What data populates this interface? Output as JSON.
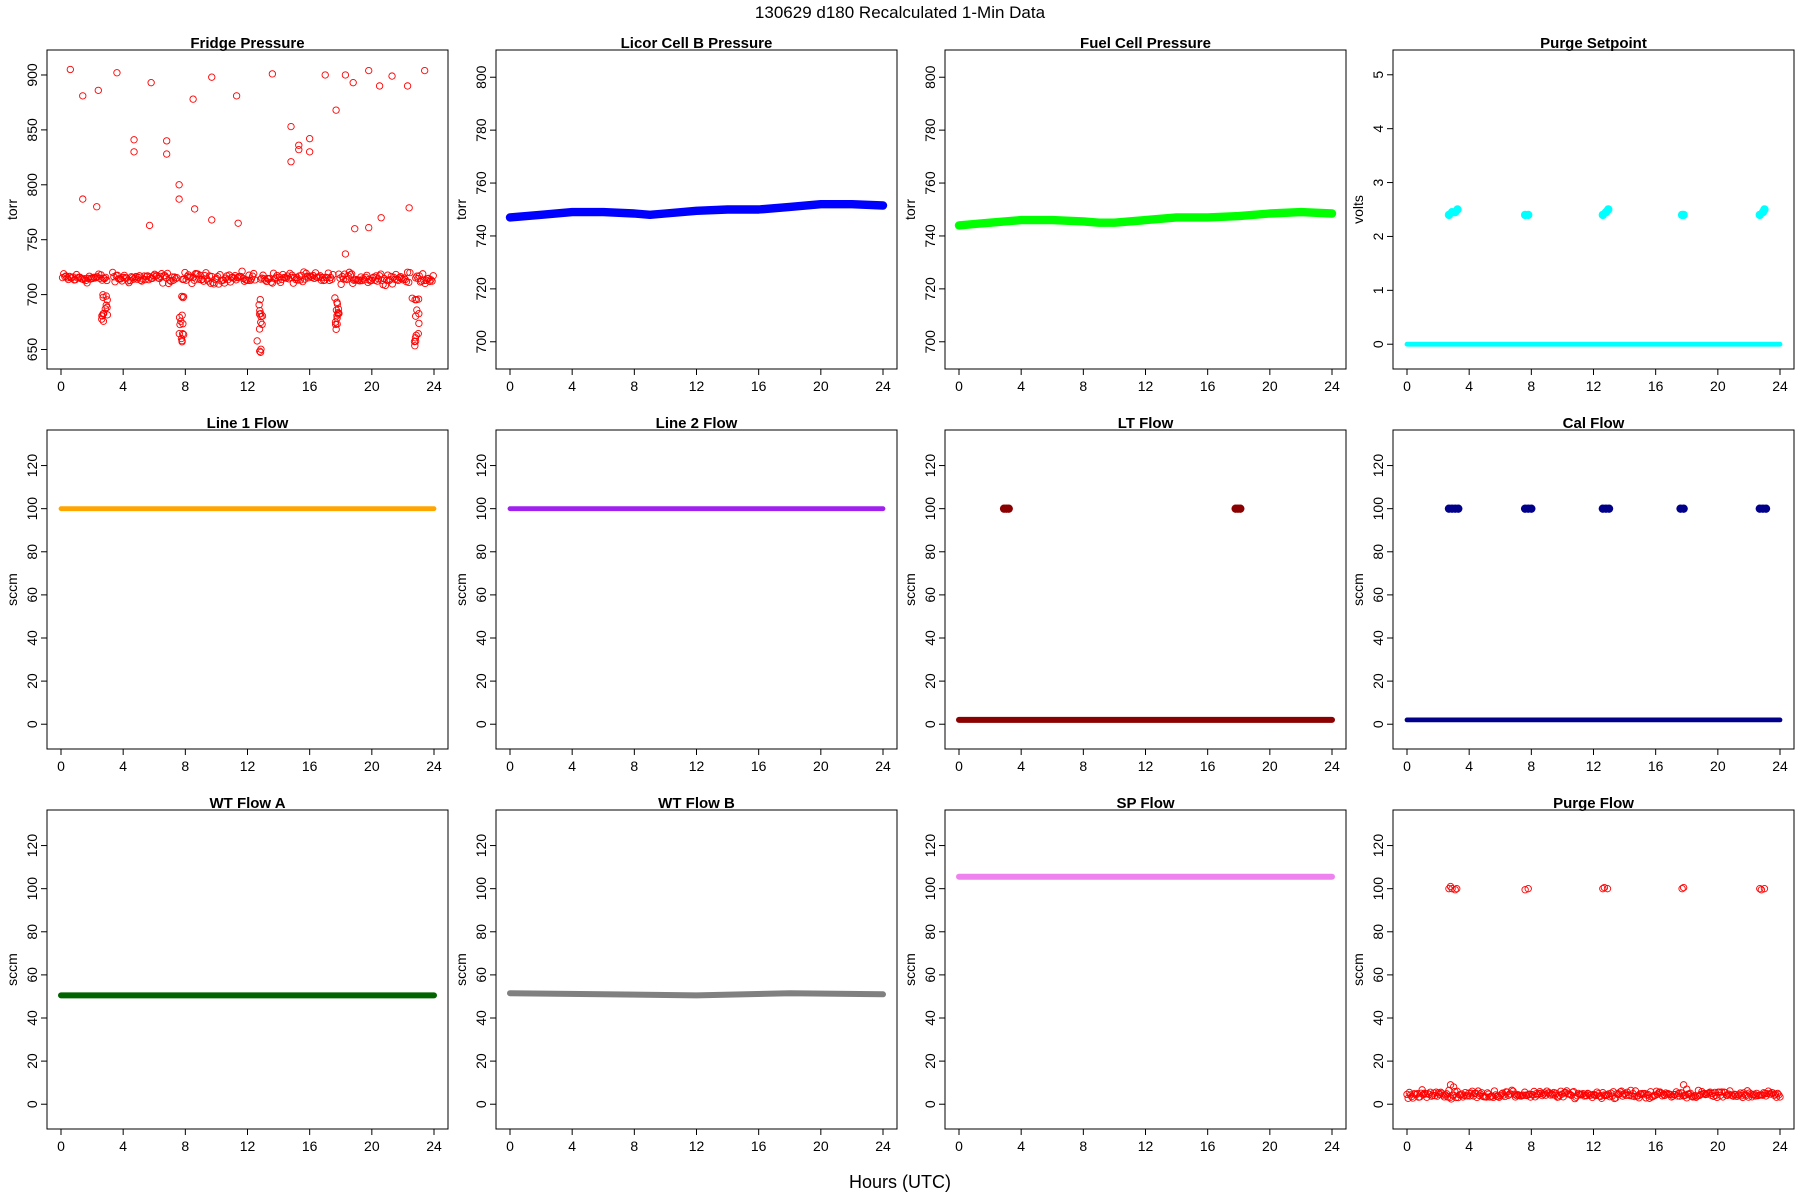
{
  "figure": {
    "title": "130629   d180   Recalculated 1-Min Data",
    "xlabel": "Hours (UTC)",
    "background": "#ffffff"
  },
  "chart_data": [
    {
      "type": "scatter",
      "title": "Fridge Pressure",
      "xlabel": "",
      "ylabel": "torr",
      "xlim": [
        0,
        24
      ],
      "ylim": [
        645,
        910
      ],
      "x_ticks": [
        0,
        4,
        8,
        12,
        16,
        20,
        24
      ],
      "y_ticks": [
        650,
        700,
        750,
        800,
        850,
        900
      ],
      "color": "#ff0000",
      "marker": "open-circle",
      "grid": false,
      "series": [
        {
          "baseline": 715,
          "jitter": 7,
          "x_from": 0.1,
          "x_to": 24.0,
          "gaps": [
            [
              3.0,
              3.3
            ],
            [
              7.5,
              7.8
            ],
            [
              12.5,
              12.8
            ],
            [
              17.5,
              17.8
            ],
            [
              22.5,
              22.8
            ]
          ],
          "dips": [
            {
              "x": [
                2.6,
                3.0
              ],
              "y": [
                655,
                700
              ]
            },
            {
              "x": [
                7.6,
                7.9
              ],
              "y": [
                655,
                700
              ]
            },
            {
              "x": [
                12.6,
                13.0
              ],
              "y": [
                647,
                700
              ]
            },
            {
              "x": [
                17.6,
                17.9
              ],
              "y": [
                660,
                700
              ]
            },
            {
              "x": [
                22.6,
                23.1
              ],
              "y": [
                652,
                700
              ]
            }
          ],
          "outliers": [
            [
              0.6,
              905
            ],
            [
              1.4,
              881
            ],
            [
              1.4,
              787
            ],
            [
              2.4,
              886
            ],
            [
              2.3,
              780
            ],
            [
              3.6,
              902
            ],
            [
              4.7,
              841
            ],
            [
              4.7,
              830
            ],
            [
              5.8,
              893
            ],
            [
              5.7,
              763
            ],
            [
              6.8,
              840
            ],
            [
              6.8,
              828
            ],
            [
              7.6,
              800
            ],
            [
              7.6,
              787
            ],
            [
              8.5,
              878
            ],
            [
              8.6,
              778
            ],
            [
              9.7,
              898
            ],
            [
              9.7,
              768
            ],
            [
              11.3,
              881
            ],
            [
              11.4,
              765
            ],
            [
              13.6,
              901
            ],
            [
              14.8,
              853
            ],
            [
              14.8,
              821
            ],
            [
              15.3,
              836
            ],
            [
              15.3,
              832
            ],
            [
              16.0,
              842
            ],
            [
              16.0,
              830
            ],
            [
              17.0,
              900
            ],
            [
              17.7,
              868
            ],
            [
              18.3,
              900
            ],
            [
              18.3,
              737
            ],
            [
              18.8,
              893
            ],
            [
              18.9,
              760
            ],
            [
              19.8,
              904
            ],
            [
              19.8,
              761
            ],
            [
              20.5,
              890
            ],
            [
              20.6,
              770
            ],
            [
              21.3,
              899
            ],
            [
              22.3,
              890
            ],
            [
              22.4,
              779
            ],
            [
              23.4,
              904
            ]
          ]
        }
      ]
    },
    {
      "type": "line",
      "title": "Licor Cell B Pressure",
      "xlabel": "",
      "ylabel": "torr",
      "xlim": [
        0,
        24
      ],
      "ylim": [
        695,
        805
      ],
      "x_ticks": [
        0,
        4,
        8,
        12,
        16,
        20,
        24
      ],
      "y_ticks": [
        700,
        720,
        740,
        760,
        780,
        800
      ],
      "color": "#0000ff",
      "grid": false,
      "series": [
        {
          "x": [
            0,
            2,
            4,
            6,
            8,
            9,
            10,
            12,
            14,
            16,
            18,
            20,
            22,
            24
          ],
          "y": [
            747,
            748,
            749,
            749,
            748.5,
            748,
            748.5,
            749.5,
            750,
            750,
            751,
            752,
            752,
            751.5
          ],
          "thickness": 3.5
        }
      ]
    },
    {
      "type": "line",
      "title": "Fuel Cell Pressure",
      "xlabel": "",
      "ylabel": "torr",
      "xlim": [
        0,
        24
      ],
      "ylim": [
        695,
        805
      ],
      "x_ticks": [
        0,
        4,
        8,
        12,
        16,
        20,
        24
      ],
      "y_ticks": [
        700,
        720,
        740,
        760,
        780,
        800
      ],
      "color": "#00ff00",
      "grid": false,
      "series": [
        {
          "x": [
            0,
            1,
            2,
            4,
            6,
            8,
            9,
            10,
            12,
            14,
            16,
            18,
            20,
            22,
            24
          ],
          "y": [
            744,
            744.5,
            745,
            746,
            746,
            745.5,
            745,
            745,
            746,
            747,
            747,
            747.5,
            748.5,
            749,
            748.5
          ],
          "thickness": 3.5
        }
      ]
    },
    {
      "type": "scatter",
      "title": "Purge Setpoint",
      "xlabel": "",
      "ylabel": "volts",
      "xlim": [
        0,
        24
      ],
      "ylim": [
        -0.2,
        5.2
      ],
      "x_ticks": [
        0,
        4,
        8,
        12,
        16,
        20,
        24
      ],
      "y_ticks": [
        0,
        1,
        2,
        3,
        4,
        5
      ],
      "color": "#00ffff",
      "grid": false,
      "series": [
        {
          "name": "",
          "x": [
            0,
            24
          ],
          "y": [
            0,
            0
          ],
          "thickness": 2
        },
        {
          "name": "",
          "points": [
            [
              2.7,
              2.4
            ],
            [
              2.9,
              2.45
            ],
            [
              3.1,
              2.45
            ],
            [
              3.25,
              2.5
            ],
            [
              7.6,
              2.4
            ],
            [
              7.8,
              2.4
            ],
            [
              12.6,
              2.4
            ],
            [
              12.8,
              2.45
            ],
            [
              12.95,
              2.5
            ],
            [
              17.7,
              2.4
            ],
            [
              17.8,
              2.4
            ],
            [
              22.7,
              2.4
            ],
            [
              22.9,
              2.45
            ],
            [
              23.0,
              2.5
            ]
          ]
        }
      ]
    },
    {
      "type": "line",
      "title": "Line 1 Flow",
      "xlabel": "",
      "ylabel": "sccm",
      "xlim": [
        0,
        24
      ],
      "ylim": [
        -5,
        130
      ],
      "x_ticks": [
        0,
        4,
        8,
        12,
        16,
        20,
        24
      ],
      "y_ticks": [
        0,
        20,
        40,
        60,
        80,
        100,
        120
      ],
      "color": "#ffa500",
      "grid": false,
      "series": [
        {
          "x": [
            0,
            24
          ],
          "y": [
            100,
            100
          ],
          "thickness": 2
        }
      ]
    },
    {
      "type": "line",
      "title": "Line 2 Flow",
      "xlabel": "",
      "ylabel": "sccm",
      "xlim": [
        0,
        24
      ],
      "ylim": [
        -5,
        130
      ],
      "x_ticks": [
        0,
        4,
        8,
        12,
        16,
        20,
        24
      ],
      "y_ticks": [
        0,
        20,
        40,
        60,
        80,
        100,
        120
      ],
      "color": "#a020f0",
      "grid": false,
      "series": [
        {
          "x": [
            0,
            24
          ],
          "y": [
            100,
            100
          ],
          "thickness": 2
        }
      ]
    },
    {
      "type": "scatter",
      "title": "LT Flow",
      "xlabel": "",
      "ylabel": "sccm",
      "xlim": [
        0,
        24
      ],
      "ylim": [
        -5,
        130
      ],
      "x_ticks": [
        0,
        4,
        8,
        12,
        16,
        20,
        24
      ],
      "y_ticks": [
        0,
        20,
        40,
        60,
        80,
        100,
        120
      ],
      "color": "#8b0000",
      "grid": false,
      "series": [
        {
          "name": "",
          "x": [
            0,
            24
          ],
          "y": [
            2,
            2
          ],
          "thickness": 2.5
        },
        {
          "name": "",
          "points": [
            [
              2.9,
              100
            ],
            [
              3.05,
              100
            ],
            [
              3.2,
              100
            ],
            [
              17.8,
              100
            ],
            [
              17.95,
              100
            ],
            [
              18.1,
              100
            ]
          ]
        }
      ]
    },
    {
      "type": "scatter",
      "title": "Cal Flow",
      "xlabel": "",
      "ylabel": "sccm",
      "xlim": [
        0,
        24
      ],
      "ylim": [
        -5,
        130
      ],
      "x_ticks": [
        0,
        4,
        8,
        12,
        16,
        20,
        24
      ],
      "y_ticks": [
        0,
        20,
        40,
        60,
        80,
        100,
        120
      ],
      "color": "#00008b",
      "grid": false,
      "series": [
        {
          "name": "",
          "x": [
            0,
            24
          ],
          "y": [
            2,
            2
          ],
          "thickness": 2
        },
        {
          "name": "",
          "points": [
            [
              2.7,
              100
            ],
            [
              2.9,
              100
            ],
            [
              3.1,
              100
            ],
            [
              3.3,
              100
            ],
            [
              7.6,
              100
            ],
            [
              7.8,
              100
            ],
            [
              8.0,
              100
            ],
            [
              12.6,
              100
            ],
            [
              12.8,
              100
            ],
            [
              13.0,
              100
            ],
            [
              17.6,
              100
            ],
            [
              17.8,
              100
            ],
            [
              22.7,
              100
            ],
            [
              22.9,
              100
            ],
            [
              23.1,
              100
            ]
          ]
        }
      ]
    },
    {
      "type": "line",
      "title": "WT Flow A",
      "xlabel": "",
      "ylabel": "sccm",
      "xlim": [
        0,
        24
      ],
      "ylim": [
        -5,
        130
      ],
      "x_ticks": [
        0,
        4,
        8,
        12,
        16,
        20,
        24
      ],
      "y_ticks": [
        0,
        20,
        40,
        60,
        80,
        100,
        120
      ],
      "color": "#006400",
      "grid": false,
      "series": [
        {
          "x": [
            0,
            24
          ],
          "y": [
            50.5,
            50.5
          ],
          "thickness": 2.5
        }
      ]
    },
    {
      "type": "line",
      "title": "WT Flow B",
      "xlabel": "",
      "ylabel": "sccm",
      "xlim": [
        0,
        24
      ],
      "ylim": [
        -5,
        130
      ],
      "x_ticks": [
        0,
        4,
        8,
        12,
        16,
        20,
        24
      ],
      "y_ticks": [
        0,
        20,
        40,
        60,
        80,
        100,
        120
      ],
      "color": "#808080",
      "grid": false,
      "series": [
        {
          "x": [
            0,
            6,
            12,
            18,
            24
          ],
          "y": [
            51.5,
            51,
            50.5,
            51.5,
            51
          ],
          "thickness": 2.5
        }
      ]
    },
    {
      "type": "line",
      "title": "SP Flow",
      "xlabel": "",
      "ylabel": "sccm",
      "xlim": [
        0,
        24
      ],
      "ylim": [
        -5,
        130
      ],
      "x_ticks": [
        0,
        4,
        8,
        12,
        16,
        20,
        24
      ],
      "y_ticks": [
        0,
        20,
        40,
        60,
        80,
        100,
        120
      ],
      "color": "#ee82ee",
      "grid": false,
      "series": [
        {
          "x": [
            0,
            24
          ],
          "y": [
            105.5,
            105.5
          ],
          "thickness": 2.5
        }
      ]
    },
    {
      "type": "scatter",
      "title": "Purge Flow",
      "xlabel": "",
      "ylabel": "sccm",
      "xlim": [
        0,
        24
      ],
      "ylim": [
        -5,
        130
      ],
      "x_ticks": [
        0,
        4,
        8,
        12,
        16,
        20,
        24
      ],
      "y_ticks": [
        0,
        20,
        40,
        60,
        80,
        100,
        120
      ],
      "color": "#ff0000",
      "marker": "open-circle",
      "grid": false,
      "series": [
        {
          "baseline": 4.5,
          "jitter": 2.5,
          "x_from": 0.0,
          "x_to": 24.0,
          "gaps": [],
          "dips": [],
          "outliers": [
            [
              2.7,
              100
            ],
            [
              2.8,
              101
            ],
            [
              2.9,
              100
            ],
            [
              3.1,
              99.5
            ],
            [
              3.2,
              100
            ],
            [
              7.6,
              99.5
            ],
            [
              7.8,
              100
            ],
            [
              12.6,
              100
            ],
            [
              12.7,
              100.5
            ],
            [
              12.9,
              100
            ],
            [
              17.7,
              100
            ],
            [
              17.8,
              100.5
            ],
            [
              22.7,
              100
            ],
            [
              22.8,
              99.5
            ],
            [
              23.0,
              100
            ],
            [
              2.8,
              9
            ],
            [
              3.0,
              8
            ],
            [
              17.8,
              9
            ],
            [
              18.0,
              7
            ]
          ]
        }
      ]
    }
  ]
}
